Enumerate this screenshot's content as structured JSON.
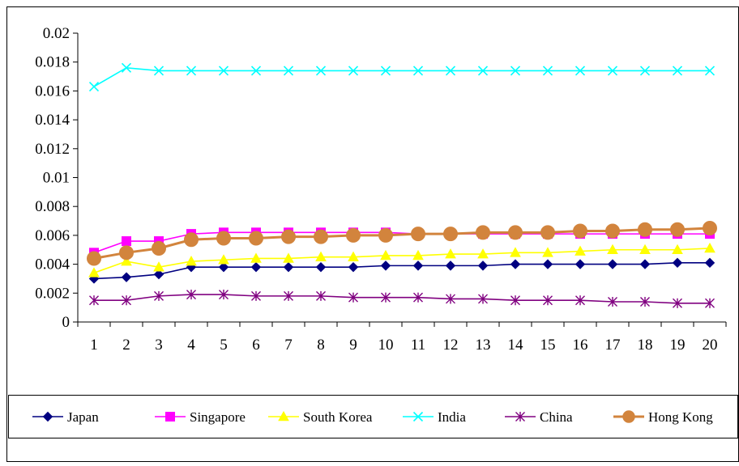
{
  "chart_data": {
    "type": "line",
    "title": "",
    "xlabel": "",
    "ylabel": "",
    "x": [
      1,
      2,
      3,
      4,
      5,
      6,
      7,
      8,
      9,
      10,
      11,
      12,
      13,
      14,
      15,
      16,
      17,
      18,
      19,
      20
    ],
    "xtick_labels": [
      "1",
      "2",
      "3",
      "4",
      "5",
      "6",
      "7",
      "8",
      "9",
      "10",
      "11",
      "12",
      "13",
      "14",
      "15",
      "16",
      "17",
      "18",
      "19",
      "20"
    ],
    "ylim": [
      0,
      0.02
    ],
    "yticks": [
      0,
      0.002,
      0.004,
      0.006,
      0.008,
      0.01,
      0.012,
      0.014,
      0.016,
      0.018,
      0.02
    ],
    "ytick_labels": [
      "0",
      "0.002",
      "0.004",
      "0.006",
      "0.008",
      "0.01",
      "0.012",
      "0.014",
      "0.016",
      "0.018",
      "0.02"
    ],
    "grid": false,
    "legend_position": "bottom",
    "series": [
      {
        "name": "Japan",
        "color": "#000080",
        "marker": "diamond",
        "values": [
          0.003,
          0.0031,
          0.0033,
          0.0038,
          0.0038,
          0.0038,
          0.0038,
          0.0038,
          0.0038,
          0.0039,
          0.0039,
          0.0039,
          0.0039,
          0.004,
          0.004,
          0.004,
          0.004,
          0.004,
          0.0041,
          0.0041
        ]
      },
      {
        "name": "Singapore",
        "color": "#FF00FF",
        "marker": "square",
        "values": [
          0.0048,
          0.0056,
          0.0056,
          0.0061,
          0.0062,
          0.0062,
          0.0062,
          0.0062,
          0.0062,
          0.0062,
          0.0061,
          0.0061,
          0.0061,
          0.0061,
          0.0061,
          0.0061,
          0.0061,
          0.0061,
          0.0061,
          0.0061
        ]
      },
      {
        "name": "South Korea",
        "color": "#FFFF00",
        "marker": "triangle",
        "values": [
          0.0034,
          0.0042,
          0.0038,
          0.0042,
          0.0043,
          0.0044,
          0.0044,
          0.0045,
          0.0045,
          0.0046,
          0.0046,
          0.0047,
          0.0047,
          0.0048,
          0.0048,
          0.0049,
          0.005,
          0.005,
          0.005,
          0.0051
        ]
      },
      {
        "name": "India",
        "color": "#00FFFF",
        "marker": "x",
        "values": [
          0.0163,
          0.0176,
          0.0174,
          0.0174,
          0.0174,
          0.0174,
          0.0174,
          0.0174,
          0.0174,
          0.0174,
          0.0174,
          0.0174,
          0.0174,
          0.0174,
          0.0174,
          0.0174,
          0.0174,
          0.0174,
          0.0174,
          0.0174
        ]
      },
      {
        "name": "China",
        "color": "#800080",
        "marker": "star",
        "values": [
          0.0015,
          0.0015,
          0.0018,
          0.0019,
          0.0019,
          0.0018,
          0.0018,
          0.0018,
          0.0017,
          0.0017,
          0.0017,
          0.0016,
          0.0016,
          0.0015,
          0.0015,
          0.0015,
          0.0014,
          0.0014,
          0.0013,
          0.0013
        ]
      },
      {
        "name": "Hong Kong",
        "color": "#D2843D",
        "marker": "circle",
        "values": [
          0.0044,
          0.0048,
          0.0051,
          0.0057,
          0.0058,
          0.0058,
          0.0059,
          0.0059,
          0.006,
          0.006,
          0.0061,
          0.0061,
          0.0062,
          0.0062,
          0.0062,
          0.0063,
          0.0063,
          0.0064,
          0.0064,
          0.0065
        ]
      }
    ]
  }
}
